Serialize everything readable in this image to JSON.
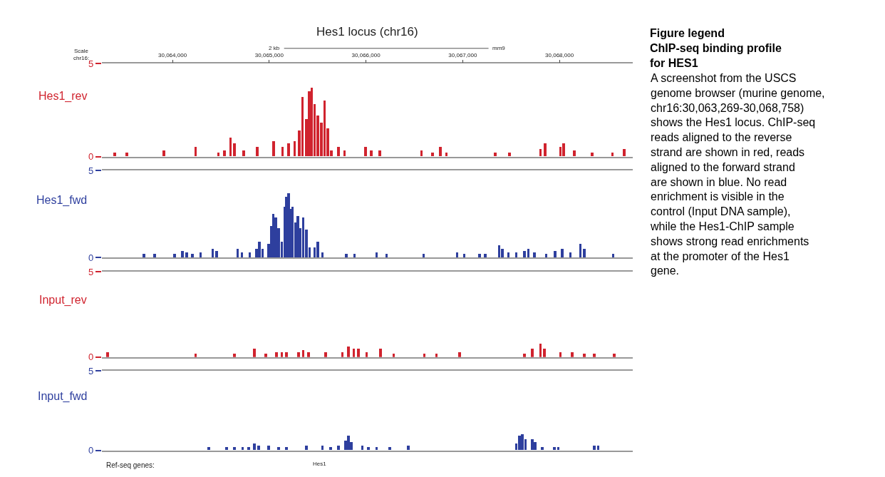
{
  "chart_data": [
    {
      "type": "bar",
      "title": "Hes1 locus (chr16)",
      "ylabel": "Hes1_rev",
      "color": "#d0232e",
      "annotations": [
        "Scale",
        "chr16:",
        "2 kb",
        "mm9"
      ],
      "xlim": [
        30063269,
        30068758
      ],
      "xticks": [
        {
          "value": 30064000,
          "label": "30,064,000"
        },
        {
          "value": 30065000,
          "label": "30,065,000"
        },
        {
          "value": 30066000,
          "label": "30,066,000"
        },
        {
          "value": 30067000,
          "label": "30,067,000"
        },
        {
          "value": 30068000,
          "label": "30,068,000"
        }
      ],
      "ylim": [
        0,
        5
      ],
      "yticks": [
        0,
        5
      ],
      "x": [
        30063401,
        30063525,
        30063909,
        30064239,
        30064475,
        30064537,
        30064599,
        30064640,
        30064735,
        30064876,
        30065045,
        30065136,
        30065198,
        30065260,
        30065310,
        30065343,
        30065384,
        30065413,
        30065438,
        30065467,
        30065500,
        30065537,
        30065570,
        30065603,
        30065640,
        30065715,
        30065776,
        30065995,
        30066053,
        30066140,
        30066574,
        30066686,
        30066768,
        30066830,
        30067334,
        30067483,
        30067801,
        30067851,
        30068008,
        30068041,
        30068152,
        30068338,
        30068545,
        30068669
      ],
      "values": [
        0.2,
        0.2,
        0.3,
        0.5,
        0.2,
        0.3,
        1.0,
        0.7,
        0.3,
        0.5,
        0.8,
        0.5,
        0.7,
        0.8,
        1.4,
        3.2,
        2.0,
        3.5,
        3.7,
        2.8,
        2.2,
        1.8,
        3.0,
        1.5,
        0.3,
        0.5,
        0.3,
        0.5,
        0.3,
        0.3,
        0.3,
        0.2,
        0.5,
        0.2,
        0.2,
        0.2,
        0.4,
        0.7,
        0.5,
        0.7,
        0.3,
        0.2,
        0.2,
        0.4
      ]
    },
    {
      "type": "bar",
      "ylabel": "Hes1_fwd",
      "color": "#2e3f9e",
      "tick_labels": "y",
      "xlim": [
        30063269,
        30068758
      ],
      "ylim": [
        0,
        5
      ],
      "yticks": [
        0,
        5
      ],
      "x": [
        30063702,
        30063814,
        30064020,
        30064103,
        30064144,
        30064206,
        30064289,
        30064413,
        30064454,
        30064673,
        30064715,
        30064797,
        30064867,
        30064896,
        30064929,
        30064991,
        30065020,
        30065041,
        30065066,
        30065095,
        30065128,
        30065157,
        30065177,
        30065198,
        30065219,
        30065239,
        30065268,
        30065293,
        30065322,
        30065351,
        30065384,
        30065417,
        30065467,
        30065500,
        30065549,
        30065797,
        30065880,
        30066107,
        30066210,
        30066595,
        30066942,
        30067016,
        30067173,
        30067231,
        30067376,
        30067409,
        30067471,
        30067553,
        30067636,
        30067677,
        30067739,
        30067863,
        30067954,
        30068028,
        30068111,
        30068214,
        30068256,
        30068553
      ],
      "values": [
        0.2,
        0.2,
        0.2,
        0.4,
        0.3,
        0.2,
        0.3,
        0.5,
        0.4,
        0.5,
        0.3,
        0.3,
        0.5,
        0.9,
        0.5,
        0.8,
        1.8,
        2.5,
        2.3,
        1.7,
        0.9,
        2.9,
        3.5,
        3.7,
        2.8,
        2.9,
        2.0,
        2.4,
        1.7,
        2.3,
        1.6,
        0.6,
        0.6,
        0.9,
        0.3,
        0.2,
        0.2,
        0.3,
        0.2,
        0.2,
        0.3,
        0.2,
        0.2,
        0.2,
        0.7,
        0.5,
        0.3,
        0.3,
        0.4,
        0.5,
        0.3,
        0.2,
        0.4,
        0.5,
        0.3,
        0.8,
        0.5,
        0.2
      ]
    },
    {
      "type": "bar",
      "ylabel": "Input_rev",
      "color": "#d0232e",
      "tick_labels": "y",
      "xlim": [
        30063269,
        30068758
      ],
      "ylim": [
        0,
        5
      ],
      "yticks": [
        0,
        5
      ],
      "x": [
        30063326,
        30064239,
        30064640,
        30064847,
        30064962,
        30065074,
        30065128,
        30065177,
        30065301,
        30065351,
        30065405,
        30065582,
        30065756,
        30065818,
        30065872,
        30065921,
        30066004,
        30066148,
        30066285,
        30066603,
        30066727,
        30066966,
        30067636,
        30067719,
        30067801,
        30067842,
        30068008,
        30068132,
        30068256,
        30068359,
        30068566
      ],
      "values": [
        0.3,
        0.2,
        0.2,
        0.5,
        0.2,
        0.3,
        0.3,
        0.3,
        0.3,
        0.4,
        0.3,
        0.3,
        0.3,
        0.6,
        0.5,
        0.5,
        0.3,
        0.5,
        0.2,
        0.2,
        0.2,
        0.3,
        0.2,
        0.5,
        0.8,
        0.5,
        0.3,
        0.3,
        0.2,
        0.2,
        0.2
      ]
    },
    {
      "type": "bar",
      "ylabel": "Input_fwd",
      "color": "#2e3f9e",
      "tick_labels": "y",
      "annotations": [
        "Ref-seq genes:",
        "Hes1"
      ],
      "xlim": [
        30063269,
        30068758
      ],
      "ylim": [
        0,
        5
      ],
      "yticks": [
        0,
        5
      ],
      "x": [
        30064372,
        30064558,
        30064640,
        30064723,
        30064785,
        30064847,
        30064888,
        30064991,
        30065095,
        30065177,
        30065384,
        30065549,
        30065632,
        30065715,
        30065789,
        30065818,
        30065847,
        30065962,
        30066024,
        30066107,
        30066243,
        30066438,
        30067553,
        30067586,
        30067615,
        30067648,
        30067719,
        30067747,
        30067822,
        30067946,
        30067987,
        30068359,
        30068400
      ],
      "values": [
        0.2,
        0.2,
        0.2,
        0.2,
        0.2,
        0.4,
        0.3,
        0.3,
        0.2,
        0.2,
        0.3,
        0.3,
        0.2,
        0.3,
        0.6,
        0.9,
        0.5,
        0.3,
        0.2,
        0.2,
        0.2,
        0.3,
        0.4,
        0.9,
        1.0,
        0.7,
        0.7,
        0.5,
        0.2,
        0.2,
        0.2,
        0.3,
        0.3
      ]
    },
    {
      "type": "other",
      "title": "Figure legend",
      "subtitle": "ChIP-seq binding profile for HES1",
      "annotations": [
        "A screenshot from the USCS genome browser (murine genome, chr16:30,063,269-30,068,758) shows the Hes1 locus. ChIP-seq reads aligned to the reverse strand are shown in red, reads aligned to the forward strand are shown in blue. No read enrichment is visible in the control (Input DNA sample), while the Hes1-ChIP sample shows strong read enrichments at the promoter of the Hes1 gene."
      ]
    }
  ]
}
